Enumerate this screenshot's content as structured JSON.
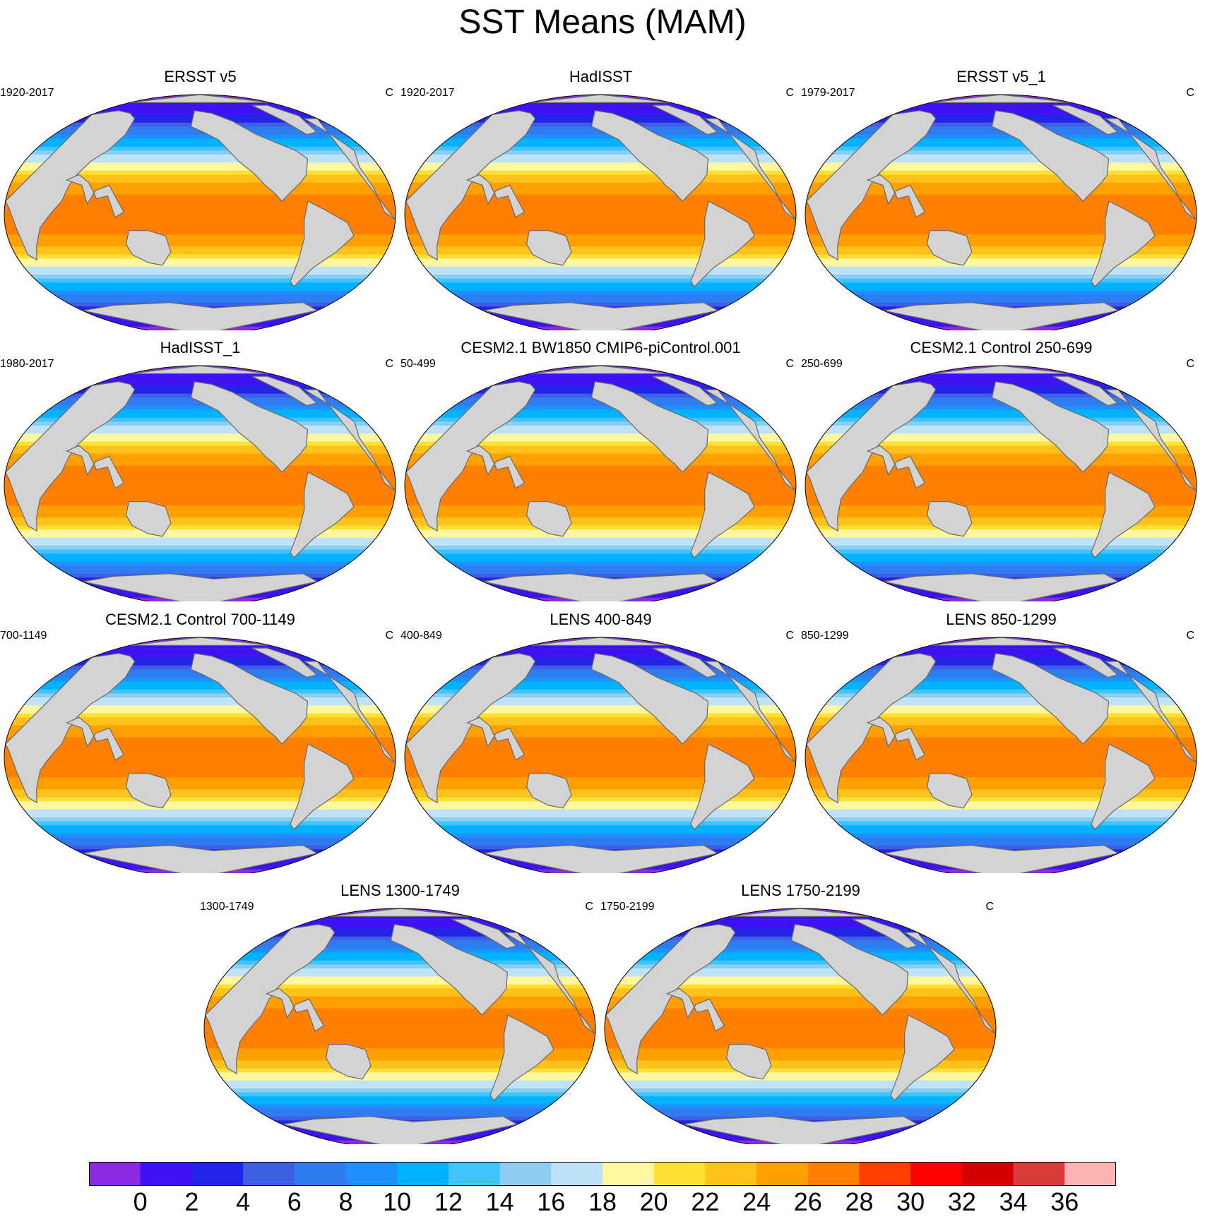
{
  "title": "SST Means (MAM)",
  "panels": [
    {
      "title": "ERSST v5",
      "period": "1920-2017",
      "units": "C"
    },
    {
      "title": "HadISST",
      "period": "1920-2017",
      "units": "C"
    },
    {
      "title": "ERSST v5_1",
      "period": "1979-2017",
      "units": "C"
    },
    {
      "title": "HadISST_1",
      "period": "1980-2017",
      "units": "C"
    },
    {
      "title": "CESM2.1 BW1850 CMIP6-piControl.001",
      "period": "50-499",
      "units": "C"
    },
    {
      "title": "CESM2.1 Control 250-699",
      "period": "250-699",
      "units": "C"
    },
    {
      "title": "CESM2.1 Control 700-1149",
      "period": "700-1149",
      "units": "C"
    },
    {
      "title": "LENS 400-849",
      "period": "400-849",
      "units": "C"
    },
    {
      "title": "LENS 850-1299",
      "period": "850-1299",
      "units": "C"
    },
    {
      "title": "LENS 1300-1749",
      "period": "1300-1749",
      "units": "C"
    },
    {
      "title": "LENS 1750-2199",
      "period": "1750-2199",
      "units": "C"
    }
  ],
  "colorbar": {
    "labels": [
      "0",
      "2",
      "4",
      "6",
      "8",
      "10",
      "12",
      "14",
      "16",
      "18",
      "20",
      "22",
      "24",
      "26",
      "28",
      "30",
      "32",
      "34",
      "36"
    ],
    "colors": [
      "#8a2be2",
      "#3e12f5",
      "#2424e6",
      "#3e5ee6",
      "#2f7cf0",
      "#1e90ff",
      "#00b2ff",
      "#40c4ff",
      "#8ccdf0",
      "#bfe2f7",
      "#fff7a0",
      "#ffe135",
      "#ffc21a",
      "#ffa000",
      "#ff7f00",
      "#ff4000",
      "#ff0000",
      "#d40000",
      "#d93a3a",
      "#ffb4b4"
    ]
  },
  "style": {
    "land": "#d3d3d3",
    "coast": "#696969"
  }
}
